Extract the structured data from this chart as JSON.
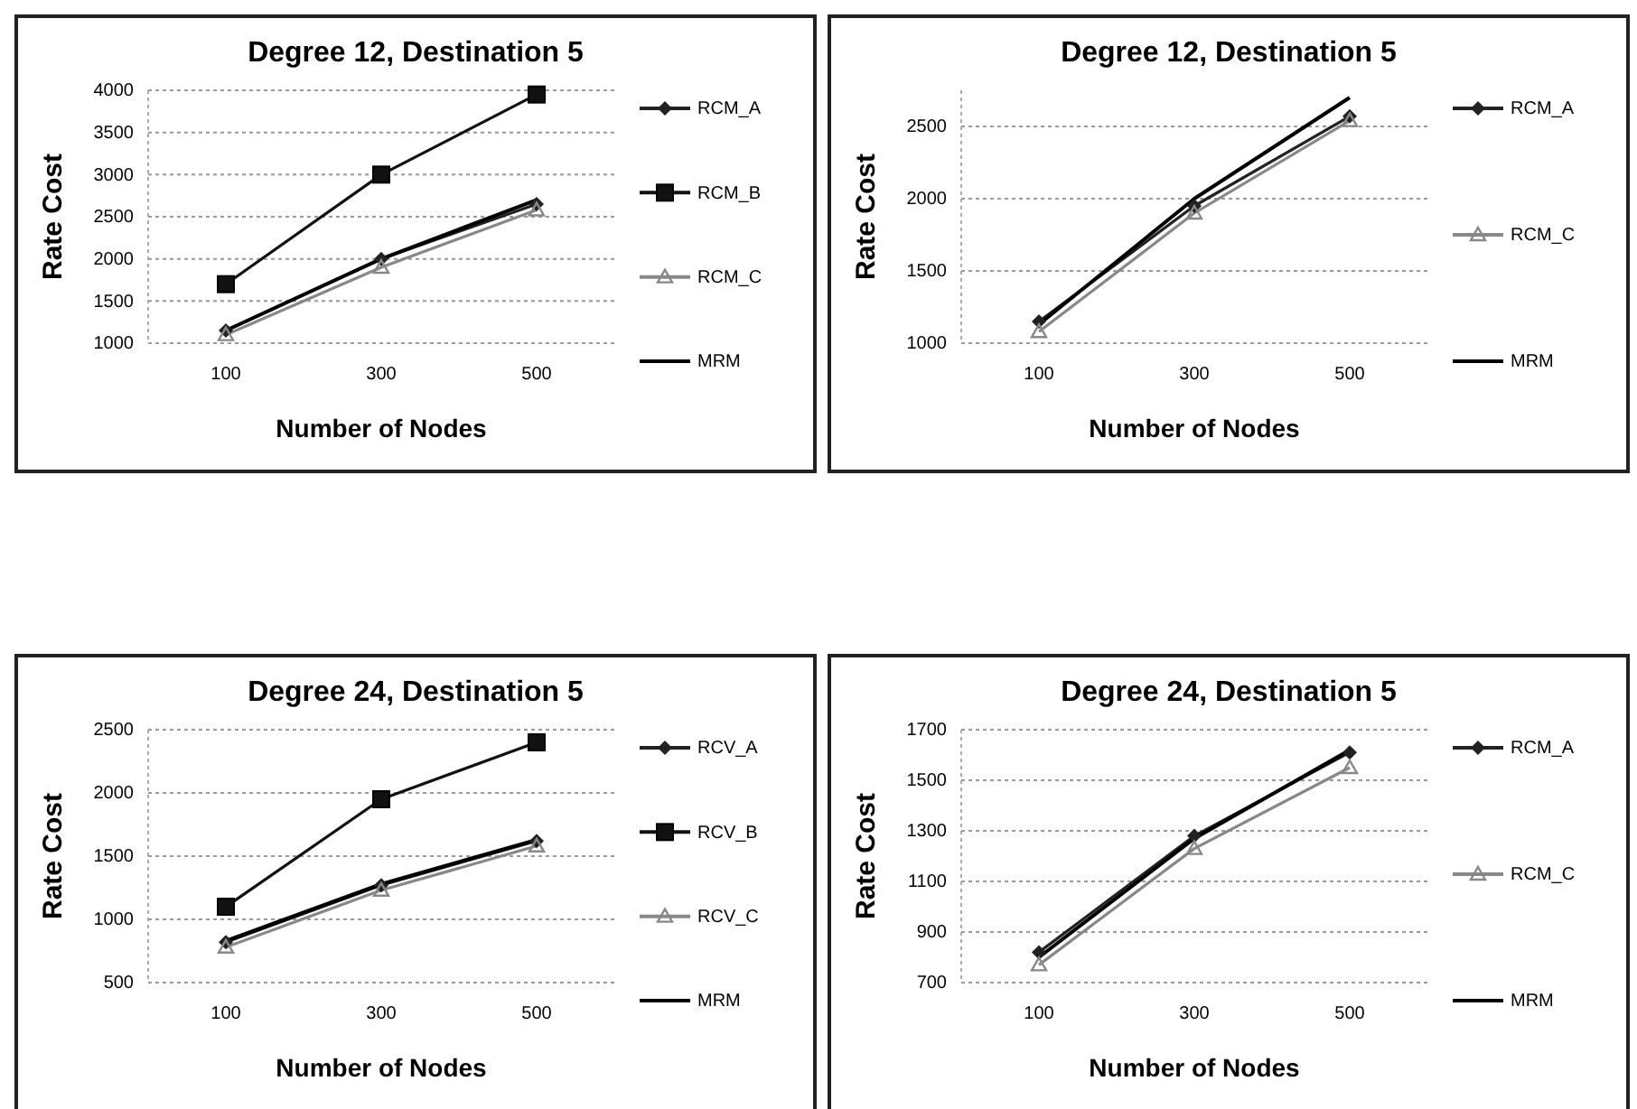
{
  "chart_data": [
    {
      "type": "line",
      "title": "Degree 12, Destination 5",
      "xlabel": "Number of Nodes",
      "ylabel": "Rate Cost",
      "categories": [
        "100",
        "300",
        "500"
      ],
      "ylim": [
        1000,
        4000
      ],
      "yticks": [
        1000,
        1500,
        2000,
        2500,
        3000,
        3500,
        4000
      ],
      "grid": "y",
      "legend": "right",
      "series": [
        {
          "name": "RCM_A",
          "color": "#222222",
          "marker": "diamond",
          "values": [
            1150,
            2000,
            2650
          ]
        },
        {
          "name": "RCM_B",
          "color": "#111111",
          "marker": "square",
          "values": [
            1700,
            3000,
            3950
          ]
        },
        {
          "name": "RCM_C",
          "color": "#888888",
          "marker": "triangle",
          "values": [
            1100,
            1900,
            2580
          ]
        },
        {
          "name": "MRM",
          "color": "#000000",
          "marker": "none",
          "values": [
            1150,
            2000,
            2700
          ]
        }
      ]
    },
    {
      "type": "line",
      "title": "Degree 12, Destination 5",
      "xlabel": "Number of Nodes",
      "ylabel": "Rate Cost",
      "categories": [
        "100",
        "300",
        "500"
      ],
      "ylim": [
        1000,
        2750
      ],
      "yticks": [
        1000,
        1500,
        2000,
        2500
      ],
      "grid": "y",
      "legend": "right",
      "series": [
        {
          "name": "RCM_A",
          "color": "#222222",
          "marker": "diamond",
          "values": [
            1150,
            1950,
            2570
          ]
        },
        {
          "name": "RCM_C",
          "color": "#888888",
          "marker": "triangle",
          "values": [
            1080,
            1900,
            2540
          ]
        },
        {
          "name": "MRM",
          "color": "#000000",
          "marker": "none",
          "values": [
            1130,
            2000,
            2700
          ]
        }
      ]
    },
    {
      "type": "line",
      "title": "Degree 24, Destination 5",
      "xlabel": "Number of Nodes",
      "ylabel": "Rate Cost",
      "categories": [
        "100",
        "300",
        "500"
      ],
      "ylim": [
        500,
        2500
      ],
      "yticks": [
        500,
        1000,
        1500,
        2000,
        2500
      ],
      "grid": "y",
      "legend": "right",
      "series": [
        {
          "name": "RCV_A",
          "color": "#222222",
          "marker": "diamond",
          "values": [
            820,
            1270,
            1620
          ]
        },
        {
          "name": "RCV_B",
          "color": "#111111",
          "marker": "square",
          "values": [
            1100,
            1950,
            2400
          ]
        },
        {
          "name": "RCV_C",
          "color": "#888888",
          "marker": "triangle",
          "values": [
            780,
            1230,
            1580
          ]
        },
        {
          "name": "MRM",
          "color": "#000000",
          "marker": "none",
          "values": [
            830,
            1280,
            1630
          ]
        }
      ]
    },
    {
      "type": "line",
      "title": "Degree 24, Destination 5",
      "xlabel": "Number of Nodes",
      "ylabel": "Rate Cost",
      "categories": [
        "100",
        "300",
        "500"
      ],
      "ylim": [
        700,
        1700
      ],
      "yticks": [
        700,
        900,
        1100,
        1300,
        1500,
        1700
      ],
      "grid": "y",
      "legend": "right",
      "series": [
        {
          "name": "RCM_A",
          "color": "#222222",
          "marker": "diamond",
          "values": [
            820,
            1280,
            1610
          ]
        },
        {
          "name": "RCM_C",
          "color": "#888888",
          "marker": "triangle",
          "values": [
            770,
            1230,
            1550
          ]
        },
        {
          "name": "MRM",
          "color": "#000000",
          "marker": "none",
          "values": [
            800,
            1270,
            1620
          ]
        }
      ]
    }
  ]
}
